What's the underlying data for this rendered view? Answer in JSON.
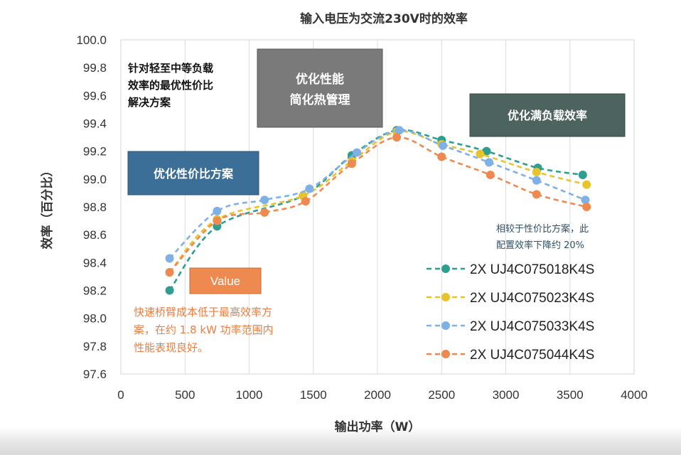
{
  "chart_data": {
    "type": "line",
    "title": "输入电压为交流230V时的效率",
    "xlabel": "输出功率（W）",
    "ylabel": "效率（百分比）",
    "xlim": [
      0,
      4000
    ],
    "ylim": [
      97.6,
      100.0
    ],
    "x_ticks": [
      0,
      500,
      1000,
      1500,
      2000,
      2500,
      3000,
      3500,
      4000
    ],
    "y_ticks": [
      "97.6",
      "97.8",
      "98.0",
      "98.2",
      "98.4",
      "98.6",
      "98.8",
      "99.0",
      "99.2",
      "99.4",
      "99.6",
      "99.8",
      "100.0"
    ],
    "grid": "vertical",
    "legend_position": "bottom-right",
    "series": [
      {
        "name": "2X UJ4C075018K4S",
        "color": "#2e9e8e",
        "x": [
          380,
          750,
          1420,
          1800,
          2150,
          2500,
          2850,
          3250,
          3600
        ],
        "y": [
          98.2,
          98.66,
          98.88,
          99.17,
          99.35,
          99.28,
          99.2,
          99.08,
          99.03
        ]
      },
      {
        "name": "2X UJ4C075023K4S",
        "color": "#e8c42a",
        "x": [
          380,
          750,
          1420,
          1800,
          2150,
          2500,
          2800,
          3240,
          3630
        ],
        "y": [
          98.33,
          98.71,
          98.88,
          99.13,
          99.34,
          99.25,
          99.18,
          99.05,
          98.96
        ]
      },
      {
        "name": "2X UJ4C075033K4S",
        "color": "#7fb0e6",
        "x": [
          380,
          750,
          1120,
          1470,
          1840,
          2170,
          2510,
          2870,
          3240,
          3620
        ],
        "y": [
          98.43,
          98.77,
          98.85,
          98.93,
          99.19,
          99.35,
          99.24,
          99.12,
          98.99,
          98.85
        ]
      },
      {
        "name": "2X UJ4C075044K4S",
        "color": "#ee8a4f",
        "x": [
          380,
          750,
          1120,
          1440,
          1800,
          2150,
          2500,
          2880,
          3240,
          3630
        ],
        "y": [
          98.33,
          98.7,
          98.76,
          98.84,
          99.11,
          99.3,
          99.16,
          99.03,
          98.89,
          98.8
        ]
      }
    ],
    "annotations": {
      "light_load": [
        "针对轻至中等负载",
        "效率的最优性价比",
        "解决方案"
      ],
      "value_scheme": "优化性价比方案",
      "thermal": [
        "优化性能",
        "简化热管理"
      ],
      "full_load": "优化满负载效率",
      "note": [
        "相较于性价比方案，此",
        "配置效率下降约 20%"
      ],
      "value_tag": "Value",
      "value_desc": [
        "快速桥臂成本低于最高效率方",
        "案，在约 1.8 kW 功率范围内",
        "性能表现良好。"
      ]
    }
  }
}
